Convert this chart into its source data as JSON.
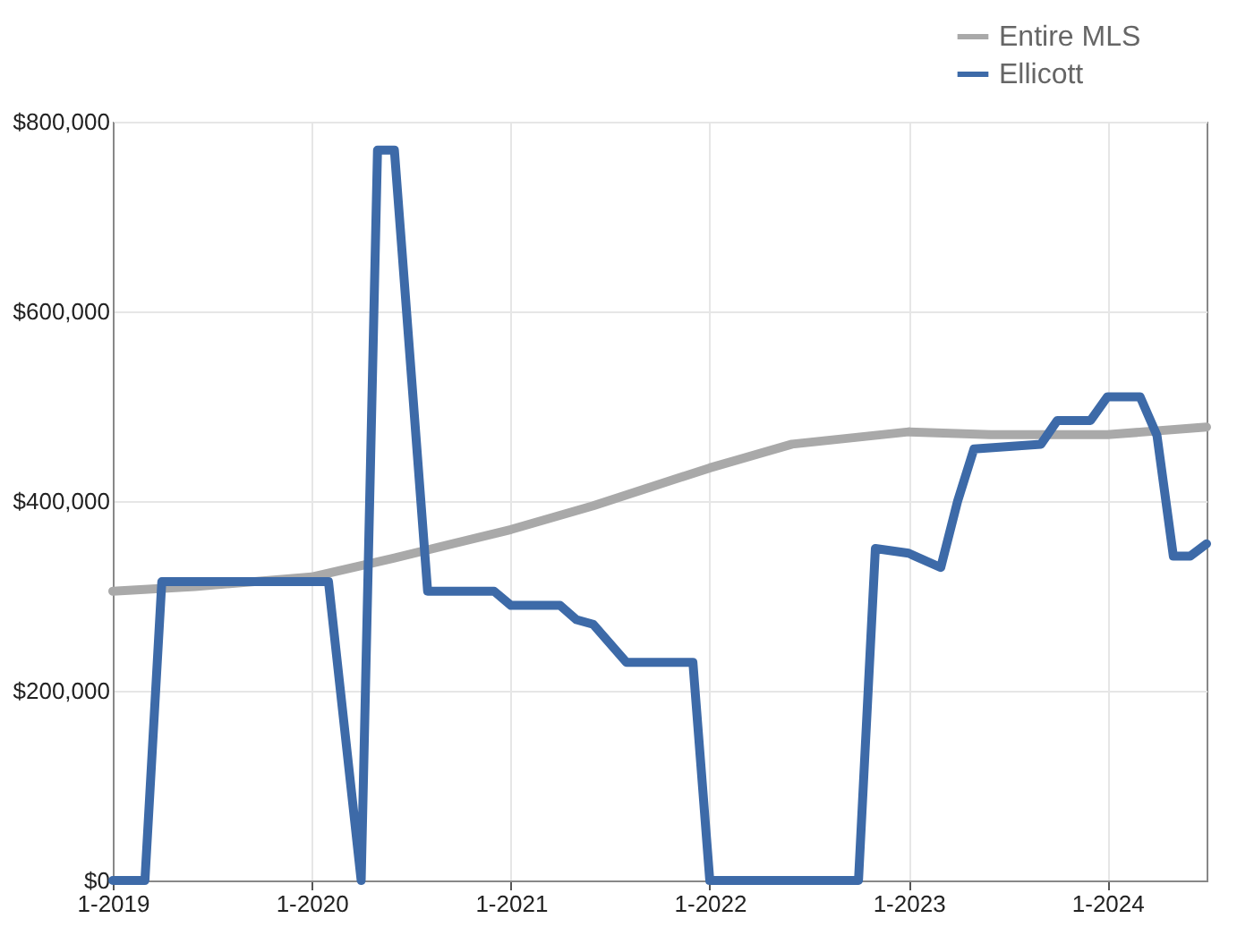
{
  "chart_data": {
    "type": "line",
    "series": [
      {
        "name": "Entire MLS",
        "color": "#a9a9a9",
        "x": [
          "2019-01",
          "2019-06",
          "2020-01",
          "2020-06",
          "2021-01",
          "2021-06",
          "2022-01",
          "2022-06",
          "2023-01",
          "2023-06",
          "2024-01",
          "2024-07"
        ],
        "values": [
          305000,
          310000,
          320000,
          340000,
          370000,
          395000,
          435000,
          460000,
          473000,
          470000,
          470000,
          478000
        ]
      },
      {
        "name": "Ellicott",
        "color": "#3d6aa8",
        "x": [
          "2019-01",
          "2019-03",
          "2019-04",
          "2020-02",
          "2020-04",
          "2020-05",
          "2020-06",
          "2020-08",
          "2020-12",
          "2021-01",
          "2021-04",
          "2021-05",
          "2021-06",
          "2021-08",
          "2021-12",
          "2022-01",
          "2022-10",
          "2022-11",
          "2023-01",
          "2023-03",
          "2023-04",
          "2023-05",
          "2023-09",
          "2023-10",
          "2023-12",
          "2024-01",
          "2024-03",
          "2024-04",
          "2024-05",
          "2024-06",
          "2024-07"
        ],
        "values": [
          0,
          0,
          315000,
          315000,
          0,
          770000,
          770000,
          305000,
          305000,
          290000,
          290000,
          275000,
          270000,
          230000,
          230000,
          0,
          0,
          350000,
          345000,
          330000,
          400000,
          455000,
          460000,
          485000,
          485000,
          510000,
          510000,
          469000,
          342000,
          342000,
          355000
        ]
      }
    ],
    "xlim": [
      "2019-01",
      "2024-07"
    ],
    "xticks": [
      {
        "value": "2019-01",
        "label": "1-2019"
      },
      {
        "value": "2020-01",
        "label": "1-2020"
      },
      {
        "value": "2021-01",
        "label": "1-2021"
      },
      {
        "value": "2022-01",
        "label": "1-2022"
      },
      {
        "value": "2023-01",
        "label": "1-2023"
      },
      {
        "value": "2024-01",
        "label": "1-2024"
      }
    ],
    "ylim": [
      0,
      800000
    ],
    "yticks": [
      {
        "value": 0,
        "label": "$0"
      },
      {
        "value": 200000,
        "label": "$200,000"
      },
      {
        "value": 400000,
        "label": "$400,000"
      },
      {
        "value": 600000,
        "label": "$600,000"
      },
      {
        "value": 800000,
        "label": "$800,000"
      }
    ],
    "grid": true,
    "legend": "top right",
    "line_style": "solid",
    "marker": "none"
  }
}
